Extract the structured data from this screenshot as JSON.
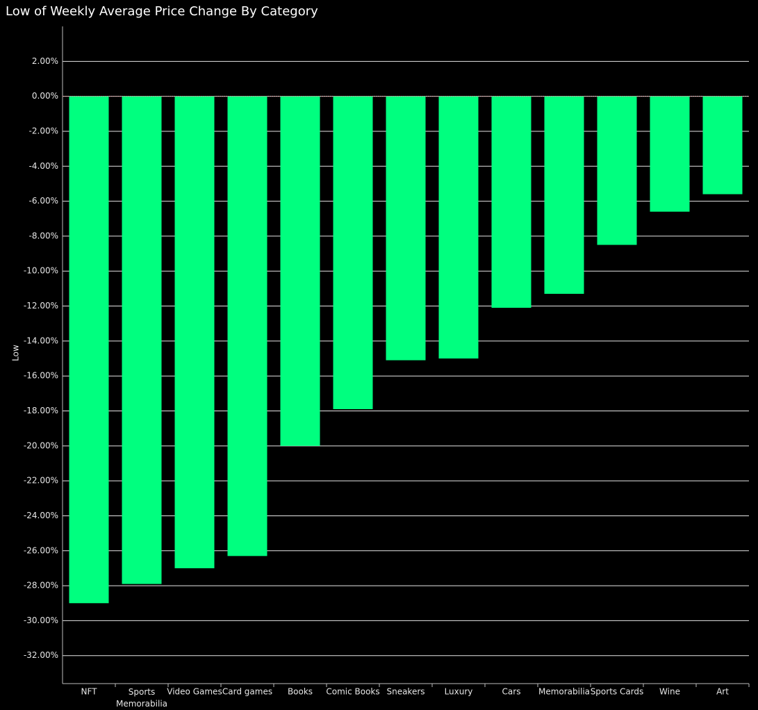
{
  "chart_data": {
    "type": "bar",
    "title": "Low of Weekly Average Price Change By Category",
    "y_label": "Low",
    "categories": [
      "NFT",
      "Sports Memorabilia",
      "Video Games",
      "Card games",
      "Books",
      "Comic Books",
      "Sneakers",
      "Luxury",
      "Cars",
      "Memorabilia",
      "Sports Cards",
      "Wine",
      "Art"
    ],
    "values": [
      -29.0,
      -27.9,
      -27.0,
      -26.3,
      -20.0,
      -17.9,
      -15.1,
      -15.0,
      -12.1,
      -11.3,
      -8.5,
      -6.6,
      -5.6
    ],
    "color": "#00ff7f",
    "ylim": [
      -33.6,
      4
    ],
    "yticks": [
      {
        "value": 2,
        "label": "2.00%"
      },
      {
        "value": 0,
        "label": "0.00%"
      },
      {
        "value": -2,
        "label": "-2.00%"
      },
      {
        "value": -4,
        "label": "-4.00%"
      },
      {
        "value": -6,
        "label": "-6.00%"
      },
      {
        "value": -8,
        "label": "-8.00%"
      },
      {
        "value": -10,
        "label": "-10.00%"
      },
      {
        "value": -12,
        "label": "-12.00%"
      },
      {
        "value": -14,
        "label": "-14.00%"
      },
      {
        "value": -16,
        "label": "-16.00%"
      },
      {
        "value": -18,
        "label": "-18.00%"
      },
      {
        "value": -20,
        "label": "-20.00%"
      },
      {
        "value": -22,
        "label": "-22.00%"
      },
      {
        "value": -24,
        "label": "-24.00%"
      },
      {
        "value": -26,
        "label": "-26.00%"
      },
      {
        "value": -28,
        "label": "-28.00%"
      },
      {
        "value": -30,
        "label": "-30.00%"
      },
      {
        "value": -32,
        "label": "-32.00%"
      }
    ],
    "grid": true
  }
}
